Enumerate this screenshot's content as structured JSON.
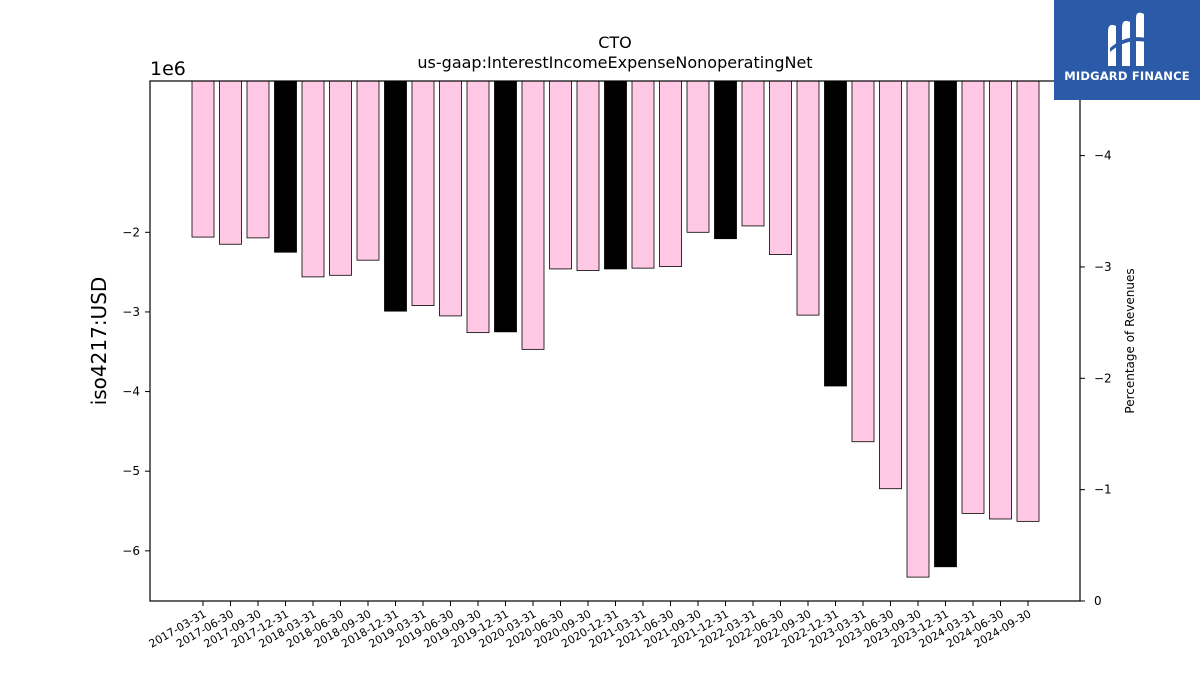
{
  "brand": {
    "name": "MIDGARD FINANCE",
    "bg_color": "#2b5aa8"
  },
  "chart_data": {
    "type": "bar",
    "title": "CTO",
    "subtitle": "us-gaap:InterestIncomeExpenseNonoperatingNet",
    "ylabel": "iso4217:USD",
    "y_offset_label": "1e6",
    "y2label": "Percentage of Revenues",
    "ylim": [
      -6.63,
      -0.1
    ],
    "y_ticks": [
      -6,
      -5,
      -4,
      -3,
      -2
    ],
    "y_tick_labels": [
      "−6",
      "−5",
      "−4",
      "−3",
      "−2"
    ],
    "y2lim": [
      0,
      -4.67
    ],
    "y2_ticks": [
      0,
      -1,
      -2,
      -3,
      -4
    ],
    "y2_tick_labels": [
      "0",
      "−1",
      "−2",
      "−3",
      "−4"
    ],
    "categories": [
      "2017-03-31",
      "2017-06-30",
      "2017-09-30",
      "2017-12-31",
      "2018-03-31",
      "2018-06-30",
      "2018-09-30",
      "2018-12-31",
      "2019-03-31",
      "2019-06-30",
      "2019-09-30",
      "2019-12-31",
      "2020-03-31",
      "2020-06-30",
      "2020-09-30",
      "2020-12-31",
      "2021-03-31",
      "2021-06-30",
      "2021-09-30",
      "2021-12-31",
      "2022-03-31",
      "2022-06-30",
      "2022-09-30",
      "2022-12-31",
      "2023-03-31",
      "2023-06-30",
      "2023-09-30",
      "2023-12-31",
      "2024-03-31",
      "2024-06-30",
      "2024-09-30"
    ],
    "values": [
      -2.06,
      -2.15,
      -2.07,
      -2.25,
      -2.56,
      -2.54,
      -2.35,
      -2.99,
      -2.92,
      -3.05,
      -3.26,
      -3.25,
      -3.47,
      -2.46,
      -2.48,
      -2.46,
      -2.45,
      -2.43,
      -2.0,
      -2.08,
      -1.92,
      -2.28,
      -3.04,
      -3.93,
      -4.63,
      -5.22,
      -6.33,
      -6.2,
      -5.53,
      -5.6,
      -5.63
    ],
    "bar_colors": [
      "#ffc8e4",
      "#ffc8e4",
      "#ffc8e4",
      "#000000",
      "#ffc8e4",
      "#ffc8e4",
      "#ffc8e4",
      "#000000",
      "#ffc8e4",
      "#ffc8e4",
      "#ffc8e4",
      "#000000",
      "#ffc8e4",
      "#ffc8e4",
      "#ffc8e4",
      "#000000",
      "#ffc8e4",
      "#ffc8e4",
      "#ffc8e4",
      "#000000",
      "#ffc8e4",
      "#ffc8e4",
      "#ffc8e4",
      "#000000",
      "#ffc8e4",
      "#ffc8e4",
      "#ffc8e4",
      "#000000",
      "#ffc8e4",
      "#ffc8e4",
      "#ffc8e4"
    ],
    "grid": false,
    "legend": "none"
  }
}
